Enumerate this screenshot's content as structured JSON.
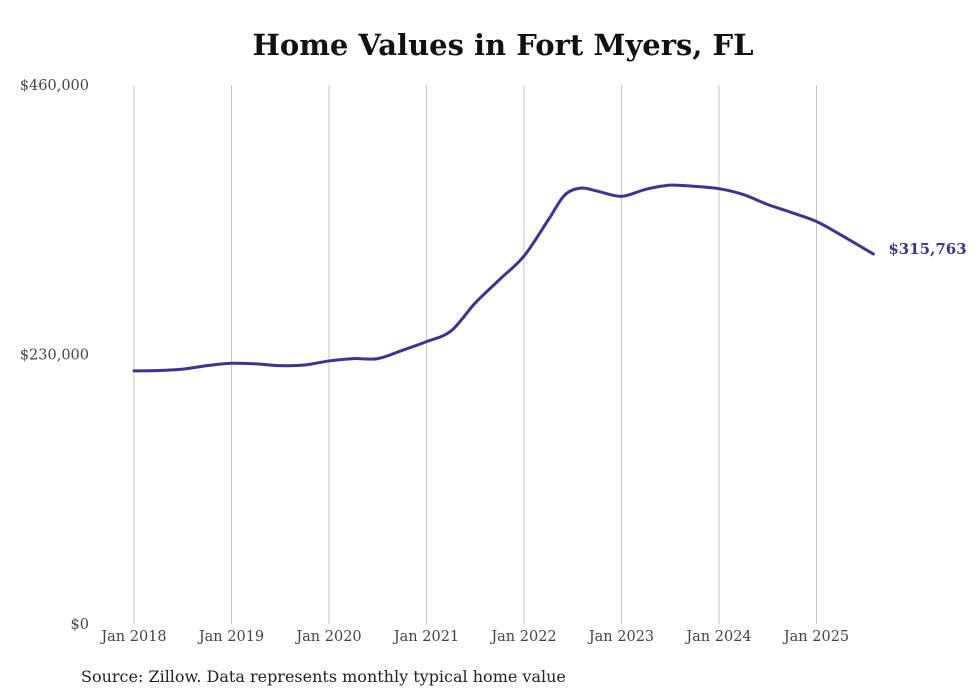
{
  "chart_data": {
    "type": "line",
    "title": "Home Values in Fort Myers, FL",
    "xlabel": "",
    "ylabel": "",
    "y_ticks": [
      "$0",
      "$230,000",
      "$460,000"
    ],
    "ylim": [
      0,
      460000
    ],
    "x_ticks": [
      "Jan 2018",
      "Jan 2019",
      "Jan 2020",
      "Jan 2021",
      "Jan 2022",
      "Jan 2023",
      "Jan 2024",
      "Jan 2025"
    ],
    "xlim": [
      "2018-01",
      "2025-08"
    ],
    "grid": "vertical",
    "line_color": "#3a3594",
    "end_label": "$315,763",
    "source": "Source: Zillow. Data represents monthly typical home value",
    "series": [
      {
        "x": [
          "2018-01",
          "2018-04",
          "2018-07",
          "2018-10",
          "2019-01",
          "2019-04",
          "2019-07",
          "2019-10",
          "2020-01",
          "2020-04",
          "2020-07",
          "2020-10",
          "2021-01",
          "2021-04",
          "2021-07",
          "2021-10",
          "2022-01",
          "2022-04",
          "2022-06",
          "2022-08",
          "2022-10",
          "2023-01",
          "2023-04",
          "2023-07",
          "2023-10",
          "2024-01",
          "2024-04",
          "2024-07",
          "2024-10",
          "2025-01",
          "2025-04",
          "2025-08"
        ],
        "values": [
          216000,
          216300,
          217500,
          220500,
          222500,
          222000,
          220500,
          221000,
          224500,
          226500,
          226500,
          233500,
          241000,
          250000,
          274000,
          294000,
          314000,
          345000,
          366000,
          372000,
          369500,
          365000,
          371000,
          374500,
          373500,
          371500,
          366500,
          358000,
          351000,
          343500,
          332000,
          315763
        ]
      }
    ]
  }
}
